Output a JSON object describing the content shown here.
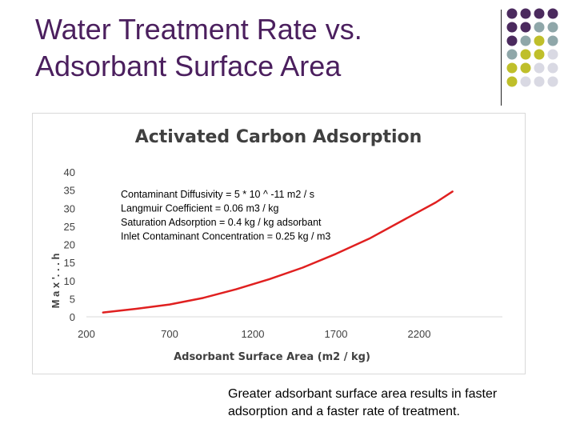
{
  "slide": {
    "title_line1": "Water Treatment Rate vs.",
    "title_line2": "Adsorbant Surface Area",
    "caption_line1": "Greater adsorbant surface area results in faster",
    "caption_line2": "adsorption and a faster rate of treatment.",
    "colors": {
      "title": "#4b1f5e",
      "dot_purple": "#4b2a5e",
      "dot_teal": "#8fa7a9",
      "dot_olive": "#bfbf2a",
      "dot_grey": "#d9d9e3"
    }
  },
  "chart_data": {
    "type": "line",
    "title": "Activated Carbon Adsorption",
    "xlabel": "Adsorbant Surface Area (m2 / kg)",
    "ylabel": "M a x '. . . h",
    "x_ticks": [
      "200",
      "700",
      "1200",
      "1700",
      "2200"
    ],
    "y_ticks": [
      "0",
      "5",
      "10",
      "15",
      "20",
      "25",
      "30",
      "35",
      "40"
    ],
    "xlim": [
      200,
      2700
    ],
    "ylim": [
      0,
      40
    ],
    "grid": false,
    "line_color": "#e02020",
    "series": [
      {
        "x": [
          300,
          500,
          700,
          900,
          1100,
          1300,
          1500,
          1700,
          1900,
          2100,
          2300,
          2400
        ],
        "y": [
          1.2,
          2.2,
          3.4,
          5.2,
          7.6,
          10.4,
          13.6,
          17.4,
          21.6,
          26.6,
          31.6,
          34.6
        ]
      }
    ],
    "annotations": [
      "Contaminant Diffusivity = 5 * 10 ^ -11 m2 / s",
      "Langmuir Coefficient = 0.06 m3 / kg",
      "Saturation Adsorption = 0.4 kg / kg adsorbant",
      "Inlet Contaminant Concentration = 0.25 kg / m3"
    ]
  }
}
